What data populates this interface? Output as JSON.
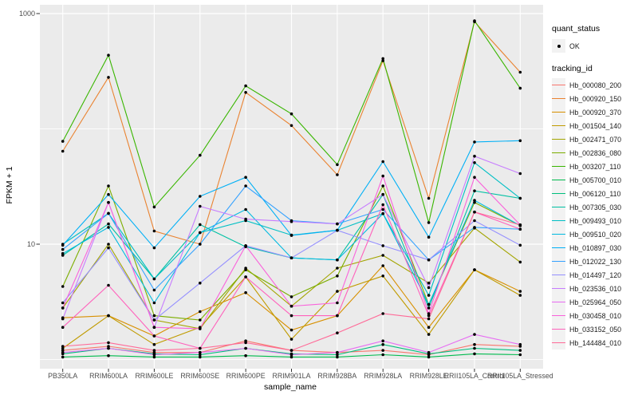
{
  "chart_data": {
    "type": "line",
    "xlabel": "sample_name",
    "ylabel": "FPKM + 1",
    "y_scale": "log10",
    "y_ticks": [
      "1000",
      "10"
    ],
    "y_tick_values": [
      1000,
      10
    ],
    "y_gridline_values": [
      1,
      10,
      100,
      1000
    ],
    "ylim": [
      0.8,
      1200
    ],
    "grid": true,
    "legend_position": "right",
    "marker": "point",
    "categories": [
      "PB350LA",
      "RRIM600LA",
      "RRIM600LE",
      "RRIM600SE",
      "RRIM600PE",
      "RRIM901LA",
      "RRIM928BA",
      "RRIM928LA",
      "RRIM928LE",
      "RRII105LA_Control",
      "RRII105LA_Stressed"
    ],
    "series": [
      {
        "name": "Hb_000080_200",
        "color": "#F8766D",
        "values": [
          1.2,
          1.3,
          1.15,
          1.15,
          1.45,
          1.2,
          1.15,
          1.2,
          1.1,
          1.35,
          1.3
        ]
      },
      {
        "name": "Hb_000920_150",
        "color": "#EA8331",
        "values": [
          64,
          280,
          13,
          10,
          207,
          107,
          40,
          390,
          25,
          850,
          310
        ]
      },
      {
        "name": "Hb_000920_370",
        "color": "#D89000",
        "values": [
          2.3,
          2.4,
          1.6,
          2.6,
          3.8,
          1.8,
          2.4,
          6.5,
          1.9,
          6.0,
          3.9
        ]
      },
      {
        "name": "Hb_001504_140",
        "color": "#C09B00",
        "values": [
          1.25,
          2.4,
          1.35,
          1.9,
          5.2,
          1.5,
          3.9,
          5.3,
          1.65,
          6.0,
          3.6
        ]
      },
      {
        "name": "Hb_002471_070",
        "color": "#A3A500",
        "values": [
          2.8,
          10,
          2.2,
          1.85,
          6.2,
          2.9,
          6.2,
          8.0,
          4.6,
          13.8,
          7.0
        ]
      },
      {
        "name": "Hb_002836_080",
        "color": "#7CAE00",
        "values": [
          4.3,
          32,
          2.4,
          2.2,
          6.0,
          3.5,
          5.3,
          32,
          3.0,
          23,
          14.5
        ]
      },
      {
        "name": "Hb_003207_110",
        "color": "#39B600",
        "values": [
          78,
          435,
          21,
          59,
          236,
          135,
          49,
          407,
          15.4,
          866,
          225
        ]
      },
      {
        "name": "Hb_005700_010",
        "color": "#00BB4E",
        "values": [
          1.05,
          1.08,
          1.05,
          1.05,
          1.08,
          1.05,
          1.05,
          1.1,
          1.05,
          1.12,
          1.1
        ]
      },
      {
        "name": "Hb_006120_110",
        "color": "#00BF7D",
        "values": [
          1.12,
          1.25,
          1.12,
          1.1,
          1.25,
          1.12,
          1.1,
          1.35,
          1.12,
          1.25,
          1.2
        ]
      },
      {
        "name": "Hb_007305_030",
        "color": "#00C1A3",
        "values": [
          8.0,
          15,
          5.0,
          14.8,
          9.5,
          7.6,
          7.3,
          27,
          2.8,
          29,
          25
        ]
      },
      {
        "name": "Hb_009493_010",
        "color": "#00BFC4",
        "values": [
          10,
          18.5,
          5.0,
          12.6,
          16,
          12,
          13.2,
          18.4,
          3.6,
          51,
          25
        ]
      },
      {
        "name": "Hb_009510_020",
        "color": "#00BAE0",
        "values": [
          8.3,
          14,
          3.1,
          12.6,
          20,
          7.6,
          7.3,
          18.4,
          3.0,
          24,
          14.5
        ]
      },
      {
        "name": "Hb_010897_030",
        "color": "#00B0F6",
        "values": [
          9.8,
          27,
          9.3,
          26,
          38,
          11.9,
          13.2,
          52,
          11.5,
          77,
          79
        ]
      },
      {
        "name": "Hb_012022_130",
        "color": "#35A2FF",
        "values": [
          9.0,
          18.5,
          4.0,
          10,
          32,
          16,
          15,
          20,
          7.3,
          14,
          13.5
        ]
      },
      {
        "name": "Hb_014497_120",
        "color": "#9590FF",
        "values": [
          3.1,
          9.3,
          2.2,
          4.6,
          9.7,
          7.6,
          13.2,
          9.7,
          7.3,
          16,
          9.8
        ]
      },
      {
        "name": "Hb_023536_010",
        "color": "#C77CFF",
        "values": [
          2.25,
          23,
          1.9,
          21.3,
          16.5,
          15.7,
          15,
          27,
          4.2,
          58,
          41
        ]
      },
      {
        "name": "Hb_025964_050",
        "color": "#E76BF3",
        "values": [
          1.15,
          1.25,
          1.1,
          1.15,
          1.25,
          1.1,
          1.15,
          1.45,
          1.15,
          1.65,
          1.35
        ]
      },
      {
        "name": "Hb_030458_010",
        "color": "#FA62DB",
        "values": [
          2.8,
          23,
          1.9,
          1.85,
          9.7,
          2.9,
          3.1,
          39,
          2.5,
          38,
          14.7
        ]
      },
      {
        "name": "Hb_033152_050",
        "color": "#FF62BC",
        "values": [
          1.9,
          4.4,
          1.6,
          1.25,
          5.2,
          2.4,
          2.4,
          22,
          2.4,
          19,
          13.5
        ]
      },
      {
        "name": "Hb_144484_010",
        "color": "#FF6A98",
        "values": [
          1.3,
          1.4,
          1.2,
          1.25,
          1.4,
          1.2,
          1.7,
          2.5,
          2.25,
          19,
          14.7
        ]
      }
    ]
  },
  "legend": {
    "quant_status_title": "quant_status",
    "quant_status_items": [
      {
        "label": "OK"
      }
    ],
    "tracking_id_title": "tracking_id"
  },
  "colors": {
    "panel_bg": "#EBEBEB",
    "grid": "#FFFFFF",
    "tick": "#333333",
    "axis_text": "#4D4D4D",
    "marker": "#000000",
    "legend_key_bg": "#F2F2F2"
  }
}
